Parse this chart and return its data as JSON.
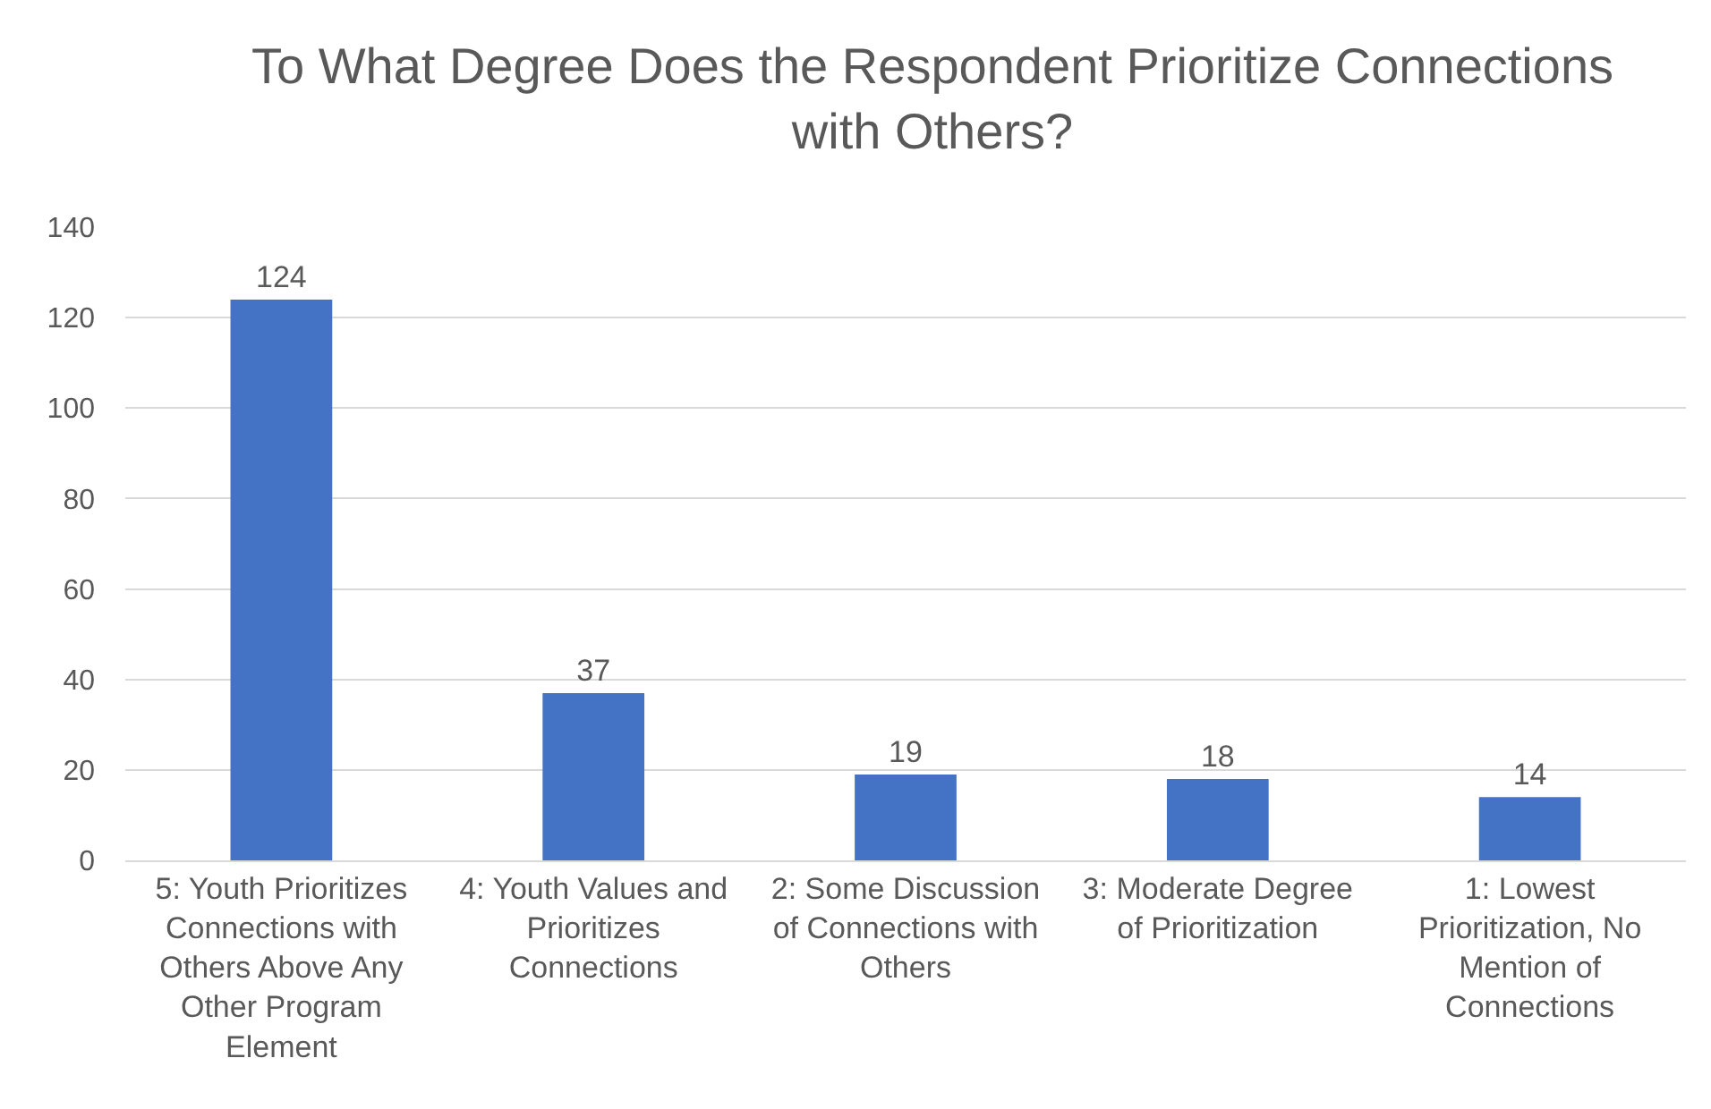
{
  "chart_data": {
    "type": "bar",
    "title": "To What Degree Does the Respondent Prioritize Connections with Others?",
    "categories": [
      "5: Youth Prioritizes Connections with Others Above Any Other Program Element",
      "4: Youth Values and Prioritizes Connections",
      "2: Some Discussion of Connections with Others",
      "3: Moderate Degree of Prioritization",
      "1: Lowest Prioritization, No Mention of Connections"
    ],
    "values": [
      124,
      37,
      19,
      18,
      14
    ],
    "color": "#4472c4",
    "ylim": [
      0,
      140
    ],
    "yticks": [
      0,
      20,
      40,
      60,
      80,
      100,
      120,
      140
    ],
    "grid": "y",
    "data_labels": true
  }
}
